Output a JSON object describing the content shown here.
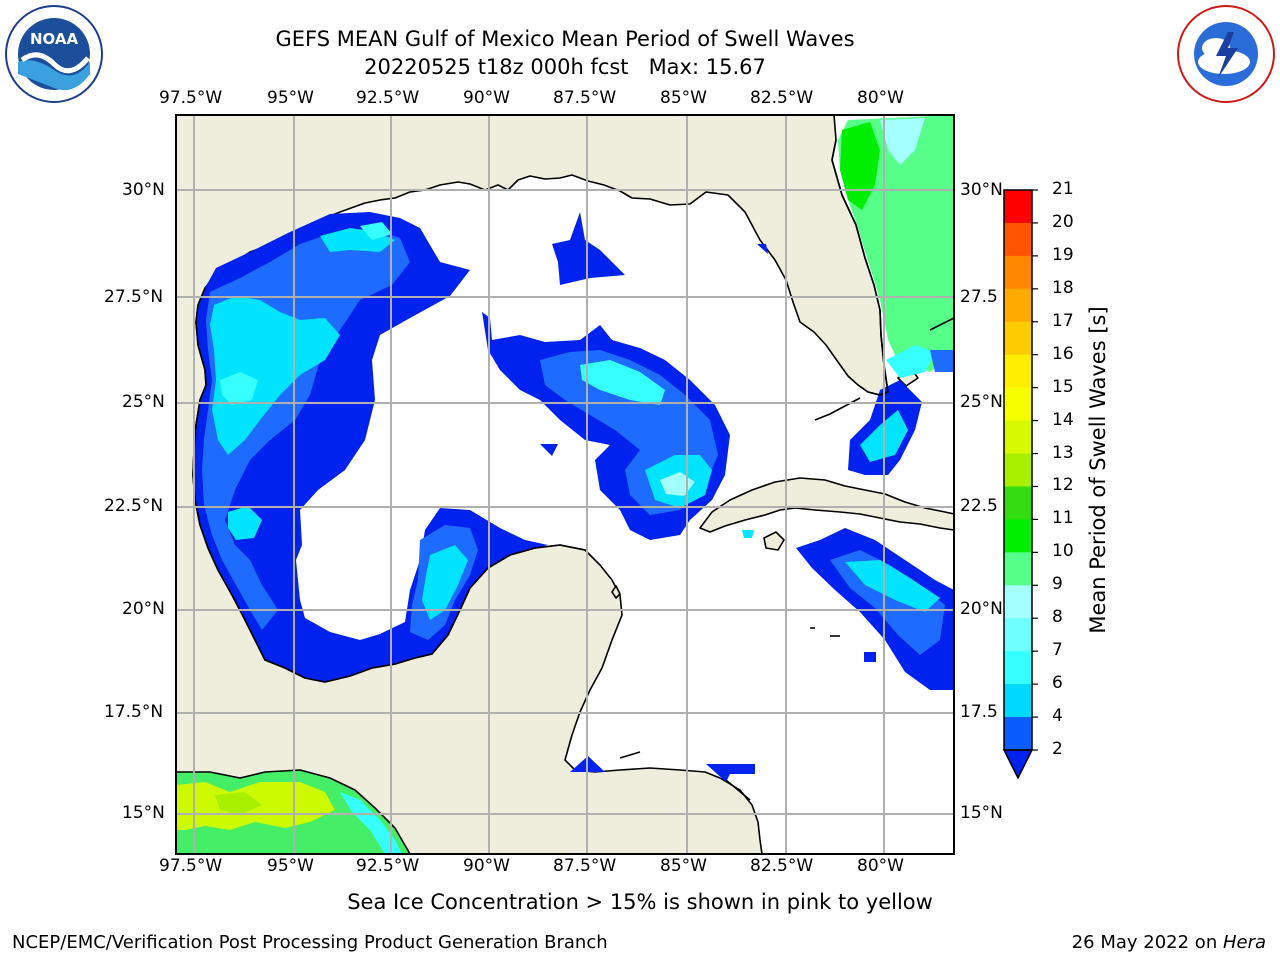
{
  "header": {
    "title": "GEFS MEAN Gulf of Mexico Mean Period of Swell Waves",
    "subtitle": "20220525 t18z 000h fcst   Max: 15.67"
  },
  "logos": {
    "left": {
      "name": "NOAA",
      "ring_text": "NATIONAL OCEANIC AND ATMOSPHERIC ADMINISTRATION · U.S. DEPARTMENT OF COMMERCE"
    },
    "right": {
      "name": "NATIONAL WEATHER SERVICE"
    }
  },
  "map": {
    "lon_labels": [
      "97.5°W",
      "95°W",
      "92.5°W",
      "90°W",
      "87.5°W",
      "85°W",
      "82.5°W",
      "80°W"
    ],
    "lat_labels_left": [
      "30°N",
      "27.5°N",
      "25°N",
      "22.5°N",
      "20°N",
      "17.5°N",
      "15°N"
    ],
    "lat_labels_right": [
      "30°N",
      "27.5",
      "25°N",
      "22.5",
      "20°N",
      "17.5",
      "15°N"
    ],
    "land_color": "#efeedc",
    "ocean_color": "#ffffff",
    "grid_color": "#b0b0b0"
  },
  "colorbar": {
    "label": "Mean Period of Swell Waves [s]",
    "ticks": [
      "2",
      "4",
      "6",
      "7",
      "8",
      "9",
      "10",
      "11",
      "12",
      "13",
      "14",
      "15",
      "16",
      "17",
      "18",
      "19",
      "20",
      "21"
    ],
    "colors": [
      "#0a5cff",
      "#00d8ff",
      "#35ffff",
      "#70ffff",
      "#a4ffff",
      "#55ff88",
      "#00ee00",
      "#33dd11",
      "#a8f000",
      "#d8fa00",
      "#f6ff00",
      "#ffee00",
      "#ffcc00",
      "#ffaa00",
      "#ff8800",
      "#ff5500",
      "#ff0000"
    ],
    "extend_color": "#0022ee"
  },
  "footer": {
    "note": "Sea Ice Concentration > 15% is shown in pink to yellow",
    "left": "NCEP/EMC/Verification Post Processing Product Generation Branch",
    "right_date": "26 May 2022 on ",
    "right_machine": "Hera"
  }
}
